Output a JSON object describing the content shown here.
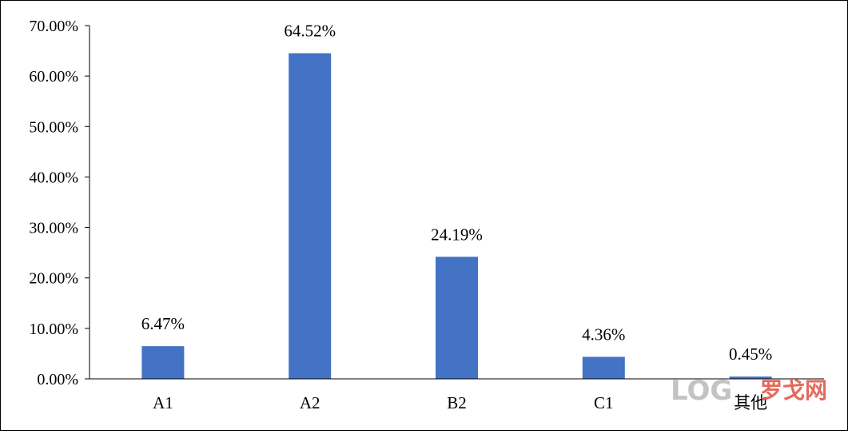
{
  "chart_data": {
    "type": "bar",
    "categories": [
      "A1",
      "A2",
      "B2",
      "C1",
      "其他"
    ],
    "values": [
      6.47,
      64.52,
      24.19,
      4.36,
      0.45
    ],
    "data_labels": [
      "6.47%",
      "64.52%",
      "24.19%",
      "4.36%",
      "0.45%"
    ],
    "ylim": [
      0,
      70
    ],
    "y_ticks": [
      0,
      10,
      20,
      30,
      40,
      50,
      60,
      70
    ],
    "y_tick_labels": [
      "0.00%",
      "10.00%",
      "20.00%",
      "30.00%",
      "40.00%",
      "50.00%",
      "60.00%",
      "70.00%"
    ],
    "title": "",
    "xlabel": "",
    "ylabel": "",
    "grid": false,
    "bar_color": "#4472C4"
  },
  "watermark": {
    "latin": "LOG",
    "cjk": "罗戈网"
  }
}
